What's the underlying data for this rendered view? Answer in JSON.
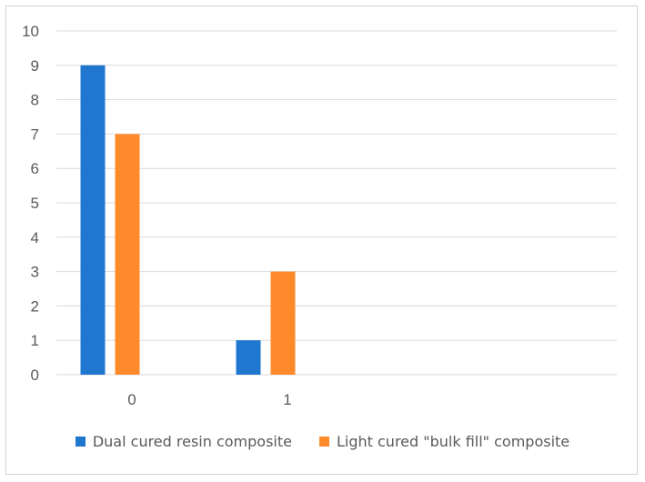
{
  "chart_data": {
    "type": "bar",
    "categories": [
      "0",
      "1",
      "",
      "",
      ""
    ],
    "series": [
      {
        "name": "Dual cured resin composite",
        "values": [
          9,
          1,
          null,
          null,
          null
        ],
        "color": "#1f77cf"
      },
      {
        "name": "Light cured \"bulk fill\" composite",
        "values": [
          7,
          3,
          null,
          null,
          null
        ],
        "color": "#ff8a2b"
      }
    ],
    "yticks": [
      0,
      1,
      2,
      3,
      4,
      5,
      6,
      7,
      8,
      9,
      10
    ],
    "ylim": [
      0,
      10
    ],
    "grid": true,
    "legend_position": "bottom",
    "gridline_color": "#d9d9d9"
  }
}
